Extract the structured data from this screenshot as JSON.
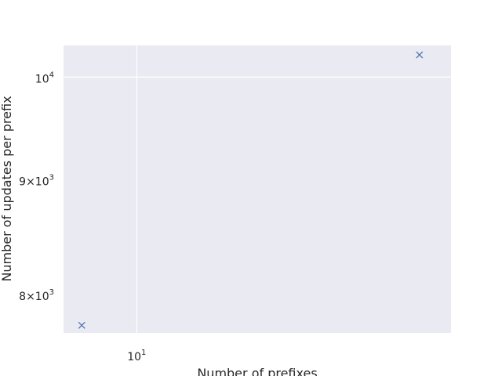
{
  "chart_data": {
    "type": "scatter",
    "title": "",
    "xlabel": "Number of prefixes",
    "ylabel": "Number of updates per prefix",
    "xscale": "log",
    "yscale": "log",
    "xlim": [
      7.43,
      35.8
    ],
    "ylim": [
      7690,
      10330
    ],
    "grid": true,
    "marker": "x",
    "colors": {
      "background": "#eaeaf2",
      "grid": "#ffffff",
      "marker": "#4c72b0"
    },
    "x_ticks": [
      {
        "value": 10,
        "base": "10",
        "exp": "1",
        "coef": ""
      }
    ],
    "y_ticks": [
      {
        "value": 8000,
        "base": "10",
        "exp": "3",
        "coef": "8×"
      },
      {
        "value": 9000,
        "base": "10",
        "exp": "3",
        "coef": "9×"
      },
      {
        "value": 10000,
        "base": "10",
        "exp": "4",
        "coef": ""
      }
    ],
    "series": [
      {
        "x": [
          8.0,
          31.5
        ],
        "y": [
          7750,
          10230
        ]
      }
    ]
  }
}
